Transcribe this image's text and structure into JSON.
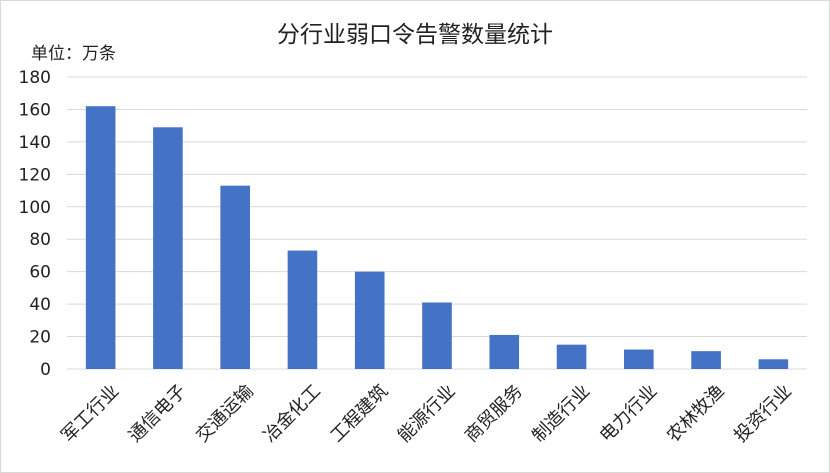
{
  "chart_data": {
    "type": "bar",
    "title": "分行业弱口令告警数量统计",
    "unit_label": "单位：万条",
    "categories": [
      "军工行业",
      "通信电子",
      "交通运输",
      "冶金化工",
      "工程建筑",
      "能源行业",
      "商贸服务",
      "制造行业",
      "电力行业",
      "农林牧渔",
      "投资行业"
    ],
    "values": [
      162,
      149,
      113,
      73,
      60,
      41,
      21,
      15,
      12,
      11,
      6
    ],
    "ylim": [
      0,
      180
    ],
    "yticks": [
      0,
      20,
      40,
      60,
      80,
      100,
      120,
      140,
      160,
      180
    ],
    "grid": true,
    "legend": "none",
    "bar_color": "#4472c4",
    "grid_color": "#d9d9d9"
  }
}
